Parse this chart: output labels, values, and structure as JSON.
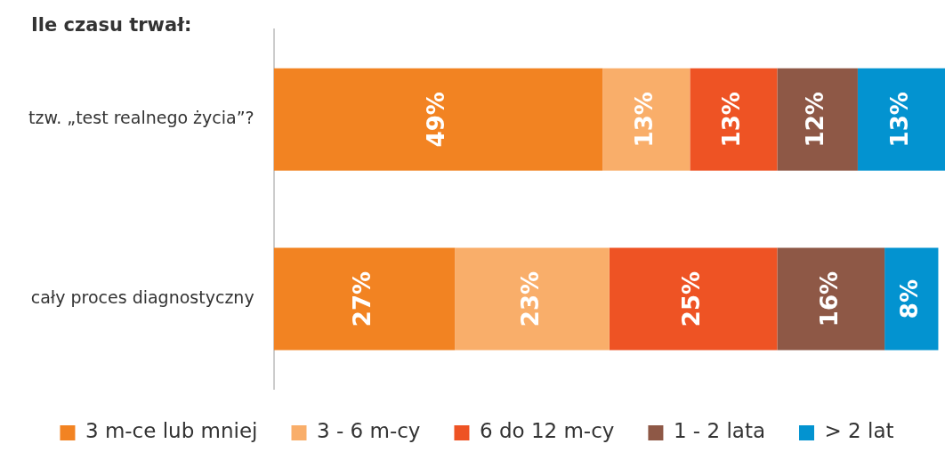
{
  "chart_data": {
    "type": "bar",
    "orientation": "horizontal",
    "stacked": true,
    "title": "Ile czasu trwał:",
    "categories": [
      "tzw. „test realnego życia”?",
      "cały proces diagnostyczny"
    ],
    "xlim": [
      0,
      100
    ],
    "tick_labels": "y",
    "legend": "bottom",
    "series": [
      {
        "name": "3 m-ce lub mniej",
        "color": "#f28322",
        "values": [
          49,
          27
        ],
        "value_labels": [
          "49%",
          "27%"
        ]
      },
      {
        "name": "3 - 6 m-cy",
        "color": "#f9ae6a",
        "values": [
          13,
          23
        ],
        "value_labels": [
          "13%",
          "23%"
        ]
      },
      {
        "name": "6 do 12 m-cy",
        "color": "#ee5324",
        "values": [
          13,
          25
        ],
        "value_labels": [
          "13%",
          "25%"
        ]
      },
      {
        "name": "1 - 2 lata",
        "color": "#8e5846",
        "values": [
          12,
          16
        ],
        "value_labels": [
          "12%",
          "16%"
        ]
      },
      {
        "name": "> 2 lat",
        "color": "#0393d0",
        "values": [
          13,
          8
        ],
        "value_labels": [
          "13%",
          "8%"
        ]
      }
    ]
  }
}
